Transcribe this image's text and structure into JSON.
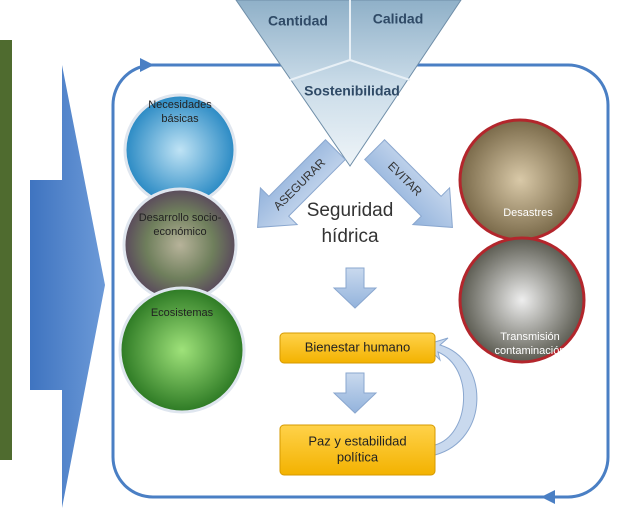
{
  "triangle": {
    "top_left": "Cantidad",
    "top_right": "Calidad",
    "bottom": "Sostenibilidad"
  },
  "arrows": {
    "left": "ASEGURAR",
    "right": "EVITAR"
  },
  "center_title": [
    "Seguridad",
    "hídrica"
  ],
  "left_circles": [
    {
      "label": [
        "Necesidades",
        "básicas"
      ]
    },
    {
      "label": [
        "Desarrollo socio-",
        "económico"
      ]
    },
    {
      "label": [
        "Ecosistemas"
      ]
    }
  ],
  "right_circles": [
    {
      "label": [
        "Desastres"
      ]
    },
    {
      "label": [
        "Transmisión",
        "contaminación"
      ]
    }
  ],
  "boxes": [
    {
      "label": [
        "Bienestar humano"
      ]
    },
    {
      "label": [
        "Paz y estabilidad",
        "política"
      ]
    }
  ]
}
